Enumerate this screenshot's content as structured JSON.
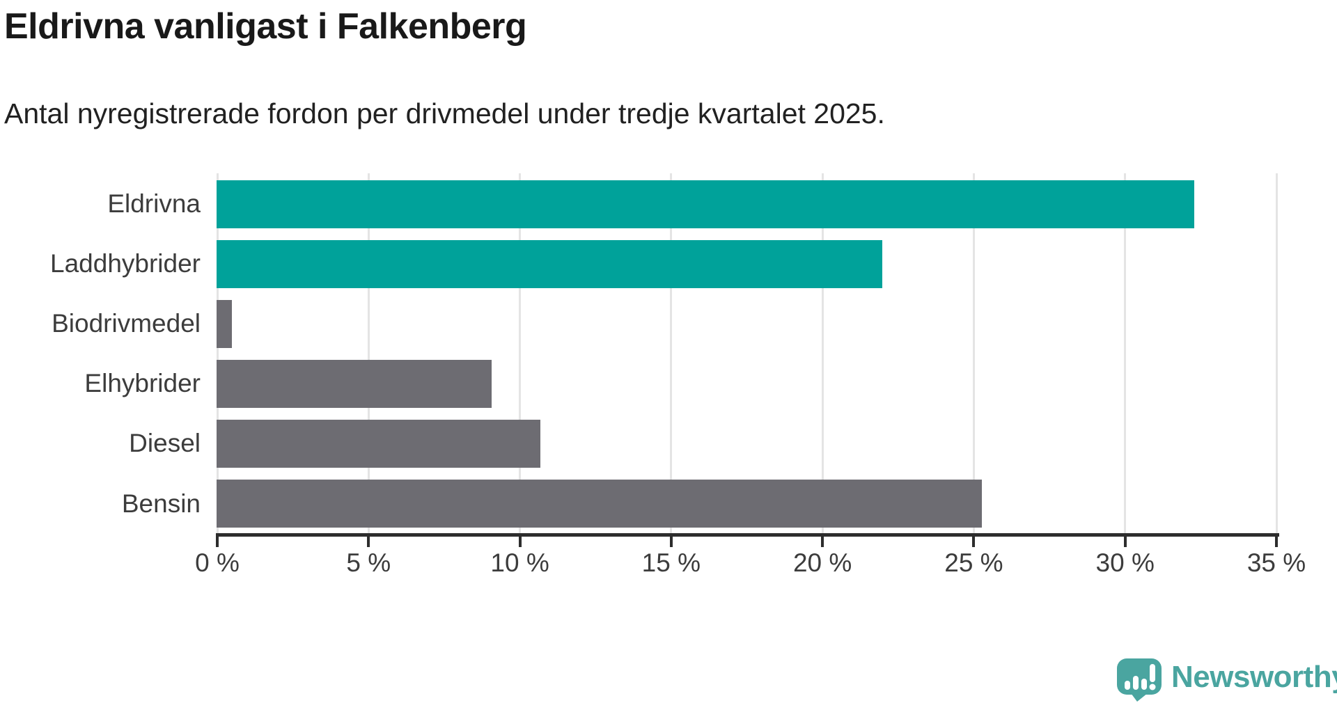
{
  "chart_data": {
    "type": "bar",
    "orientation": "horizontal",
    "title": "Eldrivna vanligast i Falkenberg",
    "subtitle": "Antal nyregistrerade fordon per drivmedel under tredje kvartalet 2025.",
    "categories": [
      "Eldrivna",
      "Laddhybrider",
      "Biodrivmedel",
      "Elhybrider",
      "Diesel",
      "Bensin"
    ],
    "values": [
      32.3,
      22.0,
      0.5,
      9.1,
      10.7,
      25.3
    ],
    "unit": "%",
    "xlabel": "",
    "ylabel": "",
    "xlim": [
      0,
      35
    ],
    "x_ticks": [
      0,
      5,
      10,
      15,
      20,
      25,
      30,
      35
    ],
    "x_tick_labels": [
      "0 %",
      "5 %",
      "10 %",
      "15 %",
      "20 %",
      "25 %",
      "30 %",
      "35 %"
    ],
    "grid": "vertical-gridlines-behind-bars",
    "legend": "none",
    "bar_colors": [
      "#00a29a",
      "#00a29a",
      "#6d6c72",
      "#6d6c72",
      "#6d6c72",
      "#6d6c72"
    ],
    "highlight_color": "#00a29a",
    "default_color": "#6d6c72"
  },
  "footer": {
    "brand": "Newsworthy",
    "brand_color": "#4aa5a0",
    "logo_icon": "speech-bubble-bar-chart-exclamation"
  }
}
